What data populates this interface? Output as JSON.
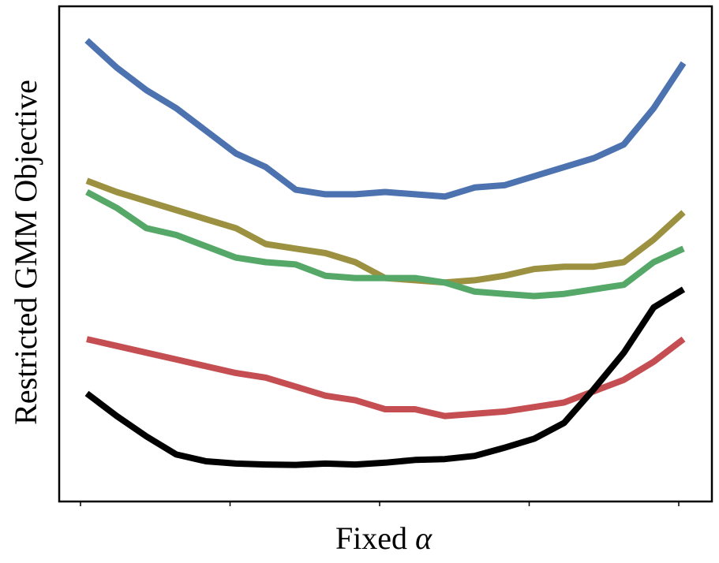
{
  "chart_data": {
    "type": "line",
    "title": "",
    "xlabel": "Fixed α",
    "xlabel_text": "Fixed ",
    "xlabel_symbol": "α",
    "ylabel": "Restricted GMM Objective",
    "x_tick_labels": [],
    "y_tick_labels": [],
    "xlim": [
      0,
      1
    ],
    "ylim": [
      0,
      1
    ],
    "grid": false,
    "legend": "none",
    "x": [
      0.0,
      0.05,
      0.1,
      0.15,
      0.2,
      0.25,
      0.3,
      0.35,
      0.4,
      0.45,
      0.5,
      0.55,
      0.6,
      0.65,
      0.7,
      0.75,
      0.8,
      0.85,
      0.9,
      0.95,
      1.0
    ],
    "series": [
      {
        "color": "#4c72b0",
        "values": [
          0.97,
          0.91,
          0.86,
          0.82,
          0.77,
          0.72,
          0.69,
          0.64,
          0.63,
          0.63,
          0.635,
          0.63,
          0.625,
          0.645,
          0.65,
          0.67,
          0.69,
          0.71,
          0.74,
          0.82,
          0.92
        ]
      },
      {
        "color": "#9c9140",
        "values": [
          0.66,
          0.635,
          0.615,
          0.595,
          0.575,
          0.555,
          0.52,
          0.51,
          0.5,
          0.48,
          0.445,
          0.44,
          0.435,
          0.44,
          0.45,
          0.465,
          0.47,
          0.47,
          0.48,
          0.53,
          0.59
        ]
      },
      {
        "color": "#55a868",
        "values": [
          0.635,
          0.6,
          0.555,
          0.54,
          0.515,
          0.49,
          0.48,
          0.475,
          0.45,
          0.445,
          0.445,
          0.445,
          0.435,
          0.415,
          0.41,
          0.405,
          0.41,
          0.42,
          0.43,
          0.48,
          0.51
        ]
      },
      {
        "color": "#c44e52",
        "values": [
          0.31,
          0.295,
          0.28,
          0.265,
          0.25,
          0.235,
          0.225,
          0.205,
          0.185,
          0.175,
          0.155,
          0.155,
          0.14,
          0.145,
          0.15,
          0.16,
          0.17,
          0.195,
          0.22,
          0.26,
          0.31
        ]
      },
      {
        "color": "#000000",
        "values": [
          0.19,
          0.14,
          0.095,
          0.055,
          0.04,
          0.035,
          0.033,
          0.032,
          0.035,
          0.033,
          0.037,
          0.043,
          0.045,
          0.052,
          0.07,
          0.09,
          0.125,
          0.2,
          0.28,
          0.38,
          0.42
        ]
      }
    ]
  }
}
